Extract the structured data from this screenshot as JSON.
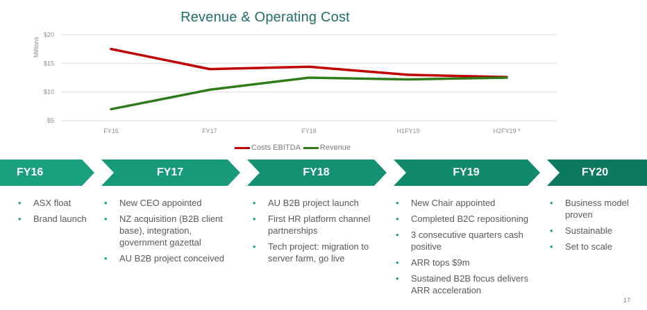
{
  "chart_data": {
    "type": "line",
    "title": "Revenue & Operating Cost",
    "ylabel": "Millions",
    "categories": [
      "FY16",
      "FY17",
      "FY18",
      "H1FY19",
      "H2FY19 *"
    ],
    "ylim": [
      5,
      20
    ],
    "yticks": [
      "$5",
      "$10",
      "$15",
      "$20"
    ],
    "grid": true,
    "legend_position": "bottom",
    "series": [
      {
        "name": "Costs EBITDA",
        "values": [
          17.5,
          14.0,
          14.4,
          13.0,
          12.6
        ],
        "color": "#c00000"
      },
      {
        "name": "Revenue",
        "values": [
          7.0,
          10.4,
          12.5,
          12.2,
          12.5
        ],
        "color": "#2e7d1a"
      }
    ]
  },
  "timeline": [
    {
      "label": "FY16",
      "color": "#1aa07f",
      "items": [
        "ASX float",
        "Brand launch"
      ]
    },
    {
      "label": "FY17",
      "color": "#179a79",
      "items": [
        "New CEO appointed",
        "NZ acquisition (B2B client base), integration, government gazettal",
        "AU B2B project conceived"
      ]
    },
    {
      "label": "FY18",
      "color": "#149172",
      "items": [
        "AU B2B project launch",
        "First HR platform channel partnerships",
        "Tech project: migration to server farm, go live"
      ]
    },
    {
      "label": "FY19",
      "color": "#11896b",
      "items": [
        "New Chair appointed",
        "Completed B2C repositioning",
        "3 consecutive quarters cash positive",
        "ARR tops $9m",
        "Sustained B2B focus delivers ARR acceleration"
      ]
    },
    {
      "label": "FY20",
      "color": "#0d7a5f",
      "items": [
        "Business model proven",
        "Sustainable",
        "Set to scale"
      ]
    }
  ],
  "bullet_glyph": "•",
  "page_number": "17"
}
